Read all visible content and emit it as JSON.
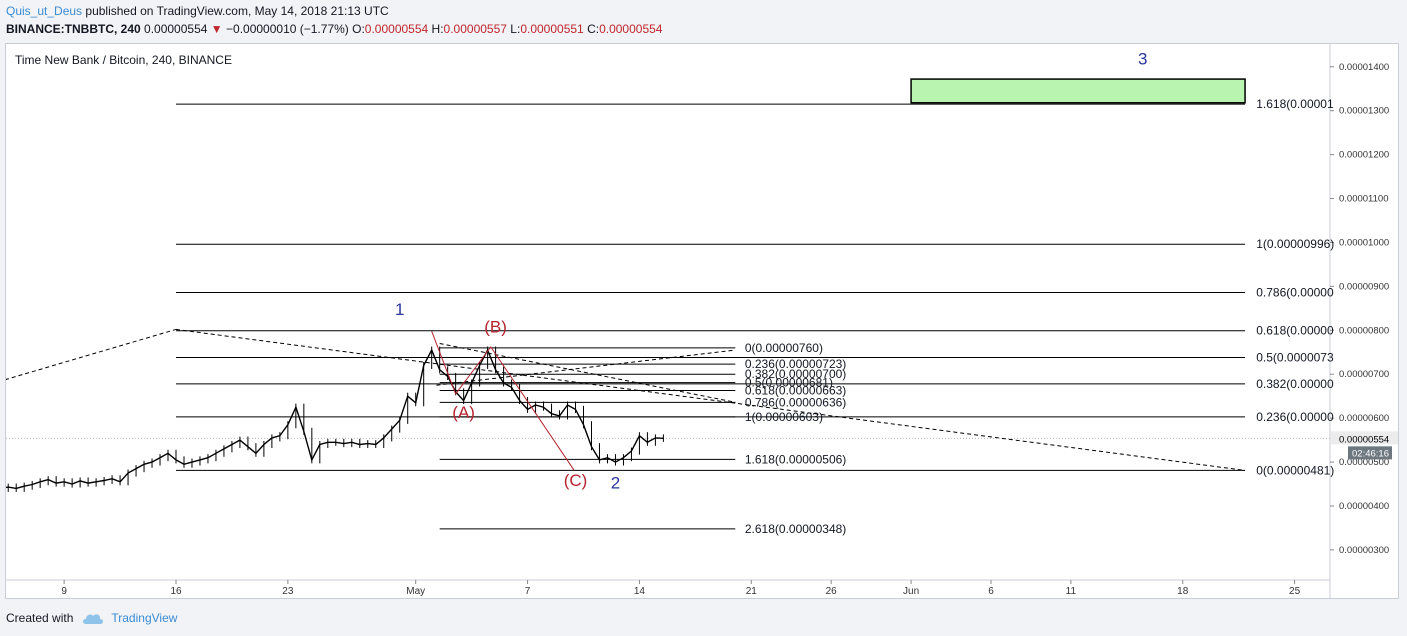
{
  "header": {
    "user": "Quis_ut_Deus",
    "published": "published on TradingView.com, May 14, 2018 21:13 UTC",
    "symbol": "BINANCE:TNBBTC, 240",
    "last": "0.00000554",
    "arrow": "▼",
    "change": "−0.00000010 (−1.77%)",
    "o_label": "O:",
    "o_value": "0.00000554",
    "h_label": "H:",
    "h_value": "0.00000557",
    "l_label": "L:",
    "l_value": "0.00000551",
    "c_label": "C:",
    "c_value": "0.00000554"
  },
  "footer": {
    "created_with": "Created with",
    "brand": "TradingView"
  },
  "colors": {
    "candle": "#000000",
    "wave_red": "#b4232e",
    "wave_blue": "#2a36a0",
    "target_fill": "#b9f5b0",
    "grid": "#d7dbe2"
  },
  "chart_data": {
    "type": "line",
    "title": "Time New Bank / Bitcoin, 240, BINANCE",
    "ylim": [
      2.6e-06,
      1.49e-05
    ],
    "y_ticks": [
      "0.00000300",
      "0.00000400",
      "0.00000500",
      "0.00000600",
      "0.00000700",
      "0.00000800",
      "0.00000900",
      "0.00001000",
      "0.00001100",
      "0.00001200",
      "0.00001300",
      "0.00001400"
    ],
    "last_price_label": "0.00000554",
    "countdown_label": "02:46:16",
    "x_ticks": [
      {
        "label": "9",
        "day": 9
      },
      {
        "label": "16",
        "day": 16
      },
      {
        "label": "23",
        "day": 23
      },
      {
        "label": "May",
        "day": 31
      },
      {
        "label": "7",
        "day": 38
      },
      {
        "label": "14",
        "day": 45
      },
      {
        "label": "21",
        "day": 52
      },
      {
        "label": "26",
        "day": 57
      },
      {
        "label": "Jun",
        "day": 62
      },
      {
        "label": "6",
        "day": 67
      },
      {
        "label": "11",
        "day": 72
      },
      {
        "label": "18",
        "day": 79
      },
      {
        "label": "25",
        "day": 86
      }
    ],
    "x_note": "day = days since April 1, 2018",
    "price_series": [
      [
        3.0,
        4.5
      ],
      [
        3.5,
        4.42
      ],
      [
        4.0,
        4.45
      ],
      [
        4.5,
        4.38
      ],
      [
        5.0,
        4.4
      ],
      [
        5.5,
        4.43
      ],
      [
        6.0,
        4.4
      ],
      [
        6.5,
        4.45
      ],
      [
        7.0,
        4.49
      ],
      [
        7.5,
        4.55
      ],
      [
        8.0,
        4.6
      ],
      [
        8.5,
        4.52
      ],
      [
        9.0,
        4.55
      ],
      [
        9.5,
        4.5
      ],
      [
        10.0,
        4.57
      ],
      [
        10.5,
        4.52
      ],
      [
        11.0,
        4.55
      ],
      [
        11.5,
        4.58
      ],
      [
        12.0,
        4.62
      ],
      [
        12.5,
        4.55
      ],
      [
        13.0,
        4.75
      ],
      [
        13.5,
        4.85
      ],
      [
        14.0,
        4.95
      ],
      [
        14.5,
        5.0
      ],
      [
        15.0,
        5.1
      ],
      [
        15.5,
        5.2
      ],
      [
        16.0,
        5.05
      ],
      [
        16.5,
        4.95
      ],
      [
        17.0,
        5.0
      ],
      [
        17.5,
        5.05
      ],
      [
        18.0,
        5.1
      ],
      [
        18.5,
        5.2
      ],
      [
        19.0,
        5.3
      ],
      [
        19.5,
        5.4
      ],
      [
        20.0,
        5.5
      ],
      [
        20.5,
        5.35
      ],
      [
        21.0,
        5.2
      ],
      [
        21.5,
        5.4
      ],
      [
        22.0,
        5.55
      ],
      [
        22.5,
        5.6
      ],
      [
        23.0,
        5.85
      ],
      [
        23.5,
        6.25
      ],
      [
        24.0,
        5.7
      ],
      [
        24.5,
        5.05
      ],
      [
        25.0,
        5.4
      ],
      [
        25.5,
        5.45
      ],
      [
        26.0,
        5.45
      ],
      [
        26.5,
        5.42
      ],
      [
        27.0,
        5.45
      ],
      [
        27.5,
        5.4
      ],
      [
        28.0,
        5.42
      ],
      [
        28.5,
        5.4
      ],
      [
        29.0,
        5.55
      ],
      [
        29.5,
        5.75
      ],
      [
        30.0,
        5.95
      ],
      [
        30.5,
        6.5
      ],
      [
        31.0,
        6.35
      ],
      [
        31.5,
        7.2
      ],
      [
        32.0,
        7.55
      ],
      [
        32.5,
        7.1
      ],
      [
        33.0,
        6.95
      ],
      [
        33.5,
        6.6
      ],
      [
        34.0,
        6.4
      ],
      [
        34.5,
        6.8
      ],
      [
        35.0,
        7.2
      ],
      [
        35.5,
        7.55
      ],
      [
        36.0,
        7.1
      ],
      [
        36.5,
        6.8
      ],
      [
        37.0,
        6.7
      ],
      [
        37.5,
        6.4
      ],
      [
        38.0,
        6.2
      ],
      [
        38.5,
        6.3
      ],
      [
        39.0,
        6.25
      ],
      [
        39.5,
        6.1
      ],
      [
        40.0,
        6.05
      ],
      [
        40.5,
        6.3
      ],
      [
        41.0,
        6.2
      ],
      [
        41.5,
        5.85
      ],
      [
        42.0,
        5.35
      ],
      [
        42.5,
        5.05
      ],
      [
        43.0,
        5.1
      ],
      [
        43.5,
        5.0
      ],
      [
        44.0,
        5.1
      ],
      [
        44.5,
        5.25
      ],
      [
        45.0,
        5.6
      ],
      [
        45.5,
        5.45
      ],
      [
        46.0,
        5.55
      ],
      [
        46.5,
        5.54
      ]
    ],
    "fib_left": [
      {
        "label": "1.618(0.00001",
        "y": 13.15
      },
      {
        "label": "1(0.00000996)",
        "y": 9.96
      },
      {
        "label": "0.786(0.00000",
        "y": 8.86
      },
      {
        "label": "0.618(0.00000",
        "y": 7.99
      },
      {
        "label": "0.5(0.0000073",
        "y": 7.38
      },
      {
        "label": "0.382(0.00000",
        "y": 6.78
      },
      {
        "label": "0.236(0.00000",
        "y": 6.03
      },
      {
        "label": "0(0.00000481)",
        "y": 4.81
      }
    ],
    "fib_mid": [
      {
        "label": "0(0.00000760)",
        "y": 7.6
      },
      {
        "label": "0.236(0.00000723)",
        "y": 7.23
      },
      {
        "label": "0.382(0.00000700)",
        "y": 7.0
      },
      {
        "label": "0.5(0.00000681)",
        "y": 6.81
      },
      {
        "label": "0.618(0.00000663)",
        "y": 6.63
      },
      {
        "label": "0.786(0.00000636)",
        "y": 6.36
      },
      {
        "label": "1(0.00000603)",
        "y": 6.03
      },
      {
        "label": "1.618(0.00000506)",
        "y": 5.06
      },
      {
        "label": "2.618(0.00000348)",
        "y": 3.48
      }
    ],
    "wave_labels": [
      {
        "text": "1",
        "day": 30.0,
        "y": 8.35,
        "color": "blue"
      },
      {
        "text": "(B)",
        "day": 36.0,
        "y": 7.95,
        "color": "red"
      },
      {
        "text": "(A)",
        "day": 34.0,
        "y": 6.0,
        "color": "red"
      },
      {
        "text": "(C)",
        "day": 41.0,
        "y": 4.45,
        "color": "red"
      },
      {
        "text": "2",
        "day": 43.5,
        "y": 4.4,
        "color": "blue"
      },
      {
        "text": "3",
        "day": 76.5,
        "y": 14.05,
        "color": "blue"
      }
    ],
    "target_box": {
      "day_start": 62.0,
      "day_end": 82.9,
      "y_low": 13.18,
      "y_high": 13.72
    }
  }
}
